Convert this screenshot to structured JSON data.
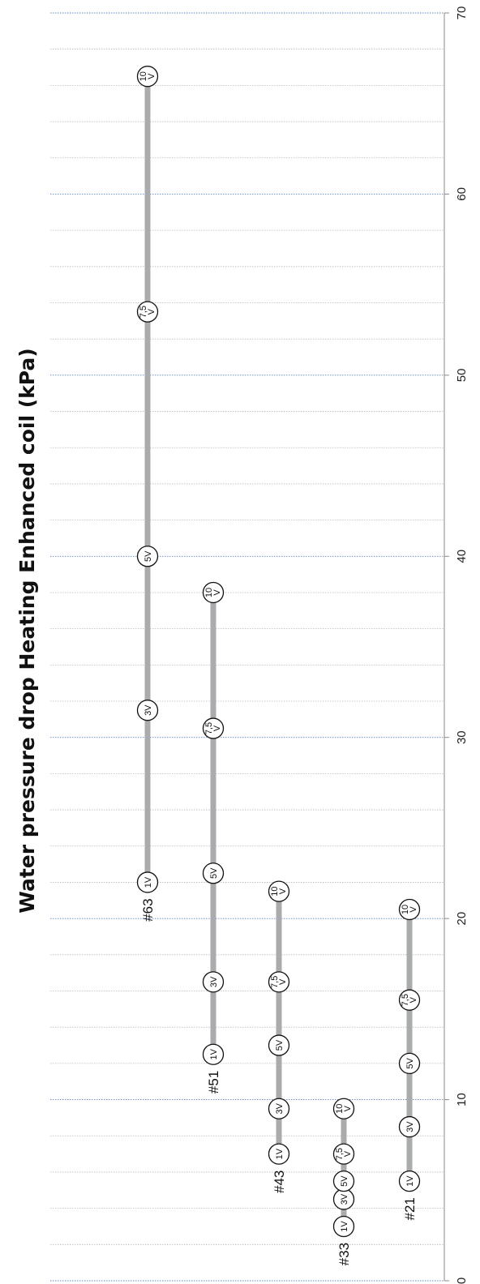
{
  "chart_data": {
    "type": "range-bar",
    "orientation": "rotated",
    "title": "Water pressure drop Heating Enhanced coil (kPa)",
    "ylim": [
      0,
      70
    ],
    "tick_labels": [
      "0",
      "10",
      "20",
      "30",
      "40",
      "50",
      "60",
      "70"
    ],
    "series": [
      {
        "name": "#21",
        "points": [
          {
            "label": "1V",
            "value": 5.5
          },
          {
            "label": "3V",
            "value": 8.5
          },
          {
            "label": "5V",
            "value": 12
          },
          {
            "label": "7,5V",
            "value": 15.5
          },
          {
            "label": "10V",
            "value": 20.5
          }
        ]
      },
      {
        "name": "#33",
        "points": [
          {
            "label": "1V",
            "value": 3
          },
          {
            "label": "3V",
            "value": 4.5
          },
          {
            "label": "5V",
            "value": 5.5
          },
          {
            "label": "7,5V",
            "value": 7
          },
          {
            "label": "10V",
            "value": 9.5
          }
        ]
      },
      {
        "name": "#43",
        "points": [
          {
            "label": "1V",
            "value": 7
          },
          {
            "label": "3V",
            "value": 9.5
          },
          {
            "label": "5V",
            "value": 13
          },
          {
            "label": "7,5V",
            "value": 16.5
          },
          {
            "label": "10V",
            "value": 21.5
          }
        ]
      },
      {
        "name": "#51",
        "points": [
          {
            "label": "1V",
            "value": 12.5
          },
          {
            "label": "3V",
            "value": 16.5
          },
          {
            "label": "5V",
            "value": 22.5
          },
          {
            "label": "7,5V",
            "value": 30.5
          },
          {
            "label": "10V",
            "value": 38
          }
        ]
      },
      {
        "name": "#63",
        "points": [
          {
            "label": "1V",
            "value": 22
          },
          {
            "label": "3V",
            "value": 31.5
          },
          {
            "label": "5V",
            "value": 40
          },
          {
            "label": "7,5V",
            "value": 53.5
          },
          {
            "label": "10V",
            "value": 66.5
          }
        ]
      }
    ]
  }
}
